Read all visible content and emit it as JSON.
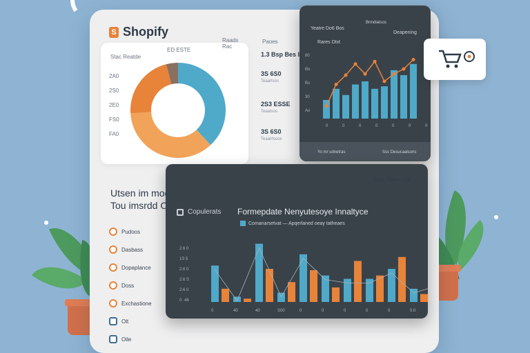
{
  "brand": {
    "name": "Shopify"
  },
  "donut_card": {
    "left_label": "Stac Reatde",
    "top_label": "ED ESTE",
    "right_label": "Raads Rac",
    "y_ticks": [
      "2A0",
      "2S0",
      "2E0",
      "FS0",
      "FA0"
    ],
    "segments": [
      {
        "value": 38,
        "color": "#4fa9c9"
      },
      {
        "value": 36,
        "color": "#f1a35a"
      },
      {
        "value": 22,
        "color": "#e8833a"
      },
      {
        "value": 4,
        "color": "#8a7060"
      }
    ]
  },
  "stats": [
    {
      "head": "Paoes",
      "value": "1.3 Bsp Bes Inter",
      "sub": ""
    },
    {
      "value": "3S 6S0",
      "sub": "Teaartsos"
    },
    {
      "value": "2S3 ESSE",
      "sub": "Teaatsos"
    },
    {
      "value": "3S 6S0",
      "sub": "Teaairtsoos"
    }
  ],
  "top_chart": {
    "header_left": "Yeatre Do6 Bos",
    "header_right": "Brmdiatsos",
    "legend": "Deapening",
    "subtitle": "Rares Dtxt",
    "footer_left": "Yo mr udnetras",
    "footer_right": "Sss Desucaalsons",
    "y_ticks": [
      "Ao",
      "30",
      "Bs",
      "Bo",
      "80"
    ],
    "x_ticks": [
      "0",
      "0",
      "0",
      "0",
      "0",
      "0",
      "0"
    ],
    "chart_data": {
      "type": "bar",
      "values": [
        30,
        48,
        38,
        55,
        60,
        48,
        52,
        78,
        70,
        88
      ],
      "line": [
        20,
        55,
        70,
        88,
        72,
        92,
        60,
        72,
        80,
        95
      ],
      "ylim": [
        0,
        100
      ]
    }
  },
  "cart": {
    "icon": "cart-icon"
  },
  "promo": {
    "line1": "Utsen im modeatting",
    "line2": "Tou imsrdd Ooe"
  },
  "menu": [
    {
      "label": "Pudoos",
      "icon": "circle-icon"
    },
    {
      "label": "Dasbass",
      "icon": "circle-icon"
    },
    {
      "label": "Dopaplance",
      "icon": "circle-icon"
    },
    {
      "label": "Doss",
      "icon": "circle-icon"
    },
    {
      "label": "Exchastione",
      "icon": "circle-icon"
    },
    {
      "label": "Olt",
      "icon": "square-icon"
    },
    {
      "label": "Oile",
      "icon": "square-icon"
    }
  ],
  "bottom_chart": {
    "corner": "Stac Dose · Ist",
    "section": "Copulerats",
    "title": "Formepdate Nenyutesoye Innaltyce",
    "legend": "Comanarsetvat — Apqerlaned oeay tatheaes",
    "y_ticks": [
      "2.6 0",
      "1S 5",
      "2.6 0",
      "2.6 S",
      "2.6 0",
      "0· 46"
    ],
    "x_ticks": [
      "0",
      "40",
      "40",
      "S00",
      "0",
      "0",
      "0",
      "0",
      "0",
      "0.0",
      "0.00"
    ],
    "chart_data": {
      "type": "bar",
      "series": [
        {
          "name": "A",
          "color": "#4fa9c9",
          "values": [
            55,
            8,
            88,
            14,
            72,
            40,
            35,
            35,
            50,
            20,
            30
          ]
        },
        {
          "name": "B",
          "color": "#e8833a",
          "values": [
            20,
            5,
            50,
            30,
            48,
            22,
            62,
            40,
            68,
            12,
            82
          ]
        }
      ],
      "ylim": [
        0,
        100
      ]
    }
  }
}
